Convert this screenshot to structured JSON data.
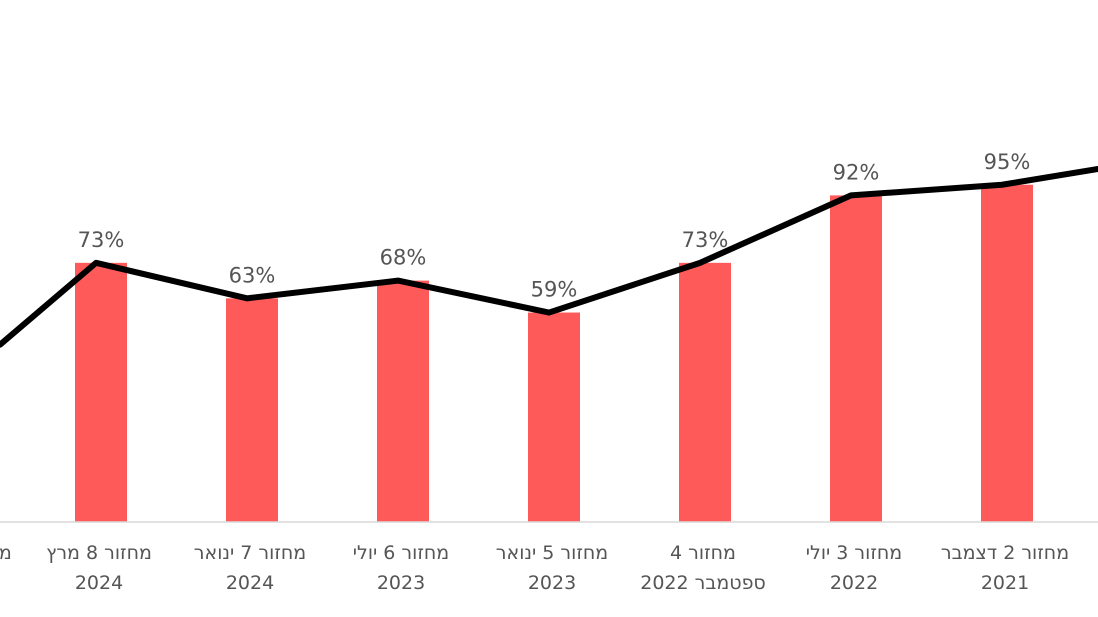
{
  "chart_data": {
    "type": "bar",
    "colors": {
      "bar": "#ff5a5a",
      "line": "#000000",
      "text": "#555555"
    },
    "grid": false,
    "ylim": [
      0,
      100
    ],
    "categories": [
      {
        "line1": "מחזור 8 מרץ",
        "line2": "2024"
      },
      {
        "line1": "מחזור 7 ינואר",
        "line2": "2024"
      },
      {
        "line1": "מחזור 6 יולי",
        "line2": "2023"
      },
      {
        "line1": "מחזור 5 ינואר",
        "line2": "2023"
      },
      {
        "line1": "מחזור 4",
        "line2": "ספטמבר 2022"
      },
      {
        "line1": "מחזור 3 יולי",
        "line2": "2022"
      },
      {
        "line1": "מחזור 2 דצמבר",
        "line2": "2021"
      }
    ],
    "partial_left_label": "מר",
    "series": [
      {
        "type": "bar",
        "values": [
          73,
          63,
          68,
          59,
          73,
          92,
          95
        ]
      },
      {
        "type": "line",
        "values": [
          73,
          63,
          68,
          59,
          73,
          92,
          95
        ],
        "left_edge_value": 55,
        "right_edge_value": 100
      }
    ],
    "data_labels": [
      "73%",
      "63%",
      "68%",
      "59%",
      "73%",
      "92%",
      "95%"
    ]
  }
}
